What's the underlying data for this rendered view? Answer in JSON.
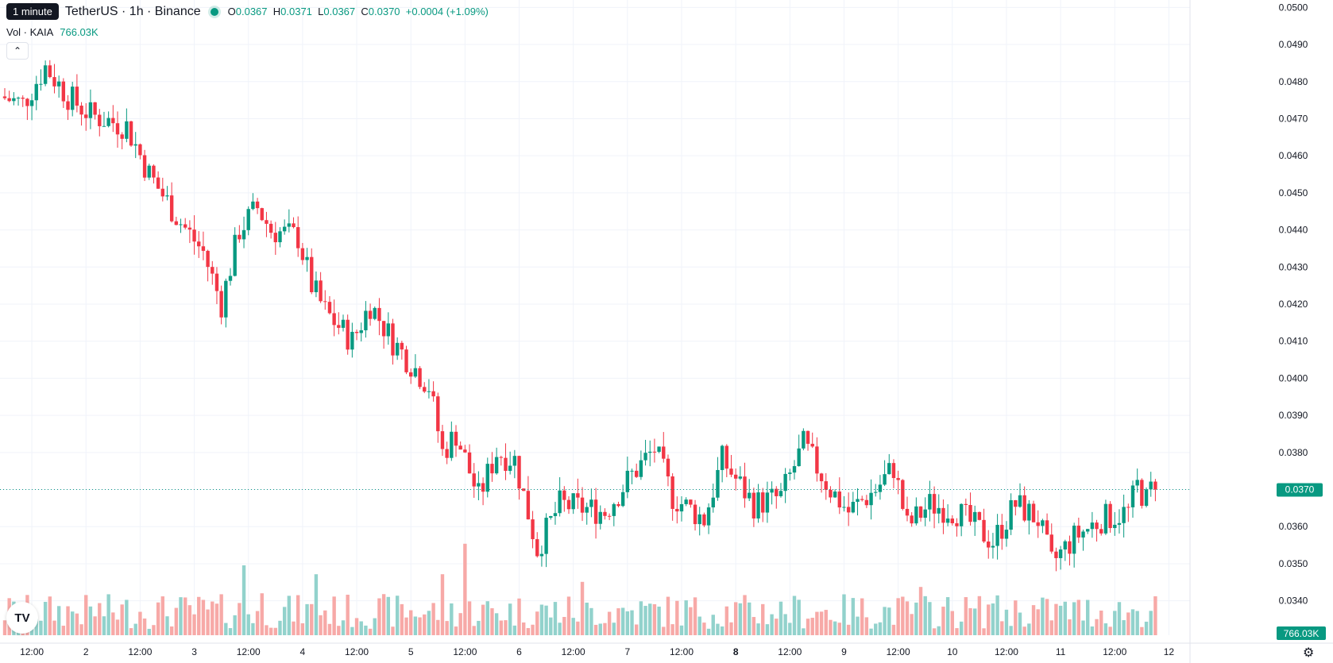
{
  "header": {
    "timeframe_tooltip": "1 minute",
    "symbol": "TetherUS · 1h · Binance",
    "ohlc": {
      "o_label": "O",
      "o_value": "0.0367",
      "h_label": "H",
      "h_value": "0.0371",
      "l_label": "L",
      "l_value": "0.0367",
      "c_label": "C",
      "c_value": "0.0370",
      "change": "+0.0004 (+1.09%)"
    }
  },
  "volume_legend": {
    "label": "Vol · KAIA",
    "value": "766.03K"
  },
  "icons": {
    "collapse": "chevron-up-icon",
    "logo": "tradingview-logo-icon",
    "settings": "gear-icon"
  },
  "colors": {
    "up": "#089981",
    "down": "#f23645",
    "up_volume": "#92d2cc",
    "down_volume": "#f7a9a7",
    "grid": "#f0f3fa",
    "text": "#131722"
  },
  "chart_data": {
    "type": "candlestick",
    "title": "",
    "xlabel": "",
    "ylabel": "",
    "ylim": [
      0.0335,
      0.0502
    ],
    "y_ticks": [
      "0.0500",
      "0.0490",
      "0.0480",
      "0.0470",
      "0.0460",
      "0.0450",
      "0.0440",
      "0.0430",
      "0.0420",
      "0.0410",
      "0.0400",
      "0.0390",
      "0.0380",
      "0.0370",
      "0.0360",
      "0.0350",
      "0.0340"
    ],
    "x_ticks": [
      {
        "label": "12:00",
        "hour": 6
      },
      {
        "label": "2",
        "hour": 18,
        "bold": false
      },
      {
        "label": "12:00",
        "hour": 30
      },
      {
        "label": "3",
        "hour": 42
      },
      {
        "label": "12:00",
        "hour": 54
      },
      {
        "label": "4",
        "hour": 66
      },
      {
        "label": "12:00",
        "hour": 78
      },
      {
        "label": "5",
        "hour": 90
      },
      {
        "label": "12:00",
        "hour": 102
      },
      {
        "label": "6",
        "hour": 114
      },
      {
        "label": "12:00",
        "hour": 126
      },
      {
        "label": "7",
        "hour": 138
      },
      {
        "label": "12:00",
        "hour": 150
      },
      {
        "label": "8",
        "hour": 162,
        "bold": true
      },
      {
        "label": "12:00",
        "hour": 174
      },
      {
        "label": "9",
        "hour": 186
      },
      {
        "label": "12:00",
        "hour": 198
      },
      {
        "label": "10",
        "hour": 210
      },
      {
        "label": "12:00",
        "hour": 222
      },
      {
        "label": "11",
        "hour": 234
      },
      {
        "label": "12:00",
        "hour": 246
      },
      {
        "label": "12",
        "hour": 258
      }
    ],
    "current_price": "0.0370",
    "current_volume": "766.03K",
    "anchors": [
      [
        0,
        0.0476
      ],
      [
        5,
        0.0474
      ],
      [
        10,
        0.0484
      ],
      [
        15,
        0.0476
      ],
      [
        20,
        0.0471
      ],
      [
        28,
        0.0468
      ],
      [
        33,
        0.0455
      ],
      [
        40,
        0.0442
      ],
      [
        45,
        0.0434
      ],
      [
        49,
        0.042
      ],
      [
        53,
        0.044
      ],
      [
        57,
        0.0446
      ],
      [
        60,
        0.044
      ],
      [
        66,
        0.0438
      ],
      [
        69,
        0.0425
      ],
      [
        72,
        0.0418
      ],
      [
        78,
        0.041
      ],
      [
        82,
        0.042
      ],
      [
        87,
        0.041
      ],
      [
        95,
        0.0398
      ],
      [
        98,
        0.038
      ],
      [
        101,
        0.0385
      ],
      [
        106,
        0.0368
      ],
      [
        110,
        0.038
      ],
      [
        114,
        0.0378
      ],
      [
        119,
        0.0354
      ],
      [
        124,
        0.0366
      ],
      [
        134,
        0.0364
      ],
      [
        140,
        0.0374
      ],
      [
        145,
        0.0381
      ],
      [
        149,
        0.0368
      ],
      [
        156,
        0.0362
      ],
      [
        160,
        0.0378
      ],
      [
        167,
        0.0366
      ],
      [
        173,
        0.0368
      ],
      [
        178,
        0.0382
      ],
      [
        184,
        0.037
      ],
      [
        188,
        0.0364
      ],
      [
        194,
        0.037
      ],
      [
        198,
        0.0376
      ],
      [
        201,
        0.036
      ],
      [
        206,
        0.0366
      ],
      [
        212,
        0.0364
      ],
      [
        220,
        0.0356
      ],
      [
        225,
        0.0366
      ],
      [
        230,
        0.0362
      ],
      [
        233,
        0.035
      ],
      [
        238,
        0.0357
      ],
      [
        244,
        0.0362
      ],
      [
        250,
        0.0364
      ],
      [
        252,
        0.0371
      ],
      [
        254,
        0.0367
      ],
      [
        255,
        0.037
      ]
    ],
    "volume_ylim": [
      0,
      100000
    ],
    "volume_range": [
      5000,
      60000
    ],
    "volume_spikes": [
      [
        53,
        55000
      ],
      [
        57,
        33000
      ],
      [
        102,
        72000
      ],
      [
        97,
        48000
      ],
      [
        128,
        42000
      ],
      [
        69,
        48000
      ],
      [
        203,
        38000
      ],
      [
        219,
        25000
      ]
    ]
  }
}
